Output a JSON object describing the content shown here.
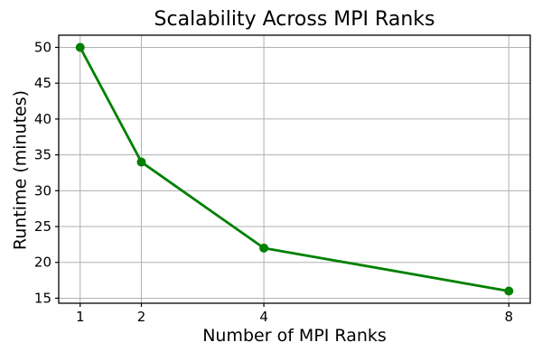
{
  "chart_data": {
    "type": "line",
    "title": "Scalability Across MPI Ranks",
    "xlabel": "Number of MPI Ranks",
    "ylabel": "Runtime (minutes)",
    "x": [
      1,
      2,
      4,
      8
    ],
    "series": [
      {
        "name": "Runtime",
        "values": [
          50,
          34,
          22,
          16
        ]
      }
    ],
    "xticks": [
      1,
      2,
      4,
      8
    ],
    "yticks": [
      15,
      20,
      25,
      30,
      35,
      40,
      45,
      50
    ],
    "xlim": [
      0.65,
      8.35
    ],
    "ylim": [
      14.3,
      51.7
    ],
    "grid": true,
    "legend": false,
    "line_color": "#008000",
    "marker": "circle",
    "grid_color": "#b0b0b0",
    "axis_color": "#000000",
    "text_color": "#000000",
    "background_color": "#ffffff"
  }
}
